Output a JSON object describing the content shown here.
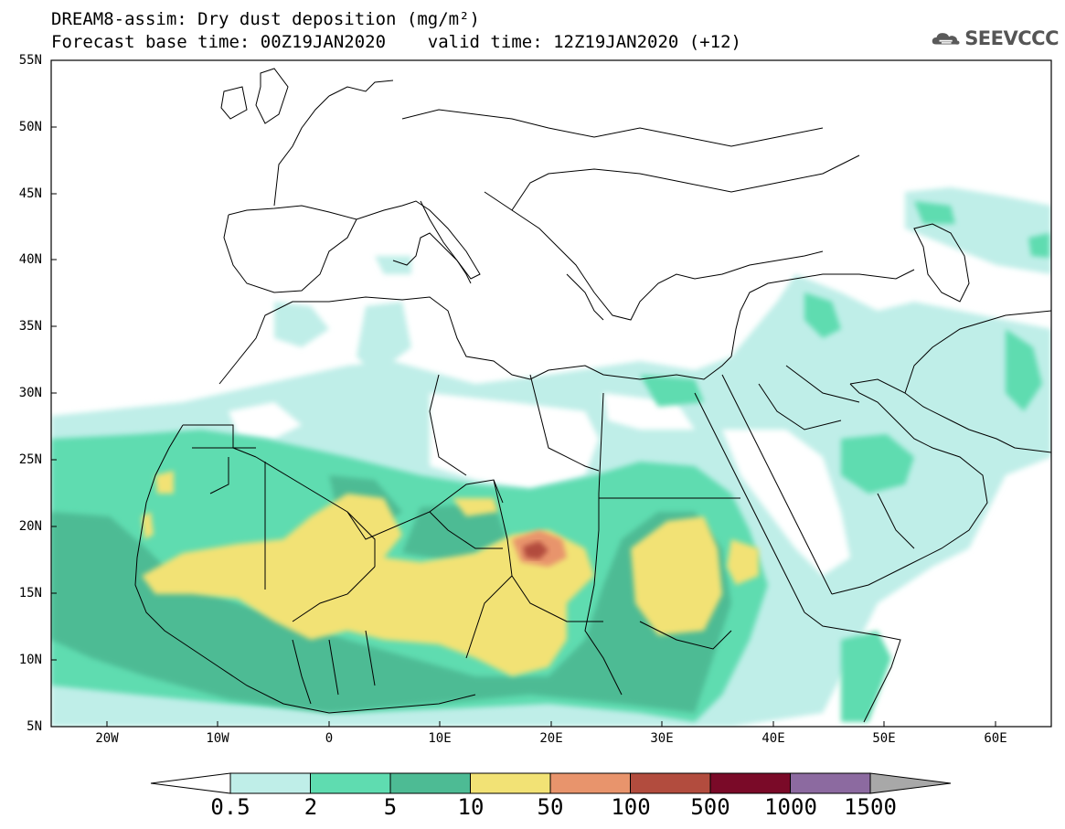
{
  "title": {
    "line1": "DREAM8-assim: Dry dust deposition (mg/m²)",
    "line2": "Forecast base time: 00Z19JAN2020    valid time: 12Z19JAN2020 (+12)"
  },
  "logo": {
    "text": "SEEVCCC",
    "icon": "cloud-icon"
  },
  "map": {
    "lon_range": [
      -25,
      65
    ],
    "lat_range": [
      5,
      55
    ],
    "lat_labels": [
      "55N",
      "50N",
      "45N",
      "40N",
      "35N",
      "30N",
      "25N",
      "20N",
      "15N",
      "10N",
      "5N"
    ],
    "lon_labels": [
      "20W",
      "10W",
      "0",
      "10E",
      "20E",
      "30E",
      "40E",
      "50E",
      "60E"
    ]
  },
  "colorbar": {
    "colors": [
      "#bfeee8",
      "#5fdcb0",
      "#4dbb94",
      "#f2e275",
      "#e8946c",
      "#b24c3e",
      "#7a0a28",
      "#8c6aa0",
      "#a8a8a8"
    ],
    "labels": [
      "0.5",
      "2",
      "5",
      "10",
      "50",
      "100",
      "500",
      "1000",
      "1500"
    ]
  }
}
